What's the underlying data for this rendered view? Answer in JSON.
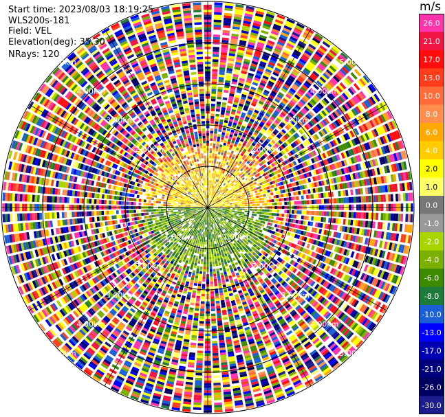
{
  "header": {
    "start_time": "Start time: 2023/08/03 18:19:25",
    "instrument": "WLS200s-181",
    "field": "Field: VEL",
    "elevation": "Elevation(deg): 35.30",
    "nrays": "NRays: 120"
  },
  "colorbar": {
    "unit": "m/s",
    "labels": [
      "26.0",
      "21.0",
      "17.0",
      "13.0",
      "10.0",
      "8.0",
      "6.0",
      "4.0",
      "2.0",
      "1.0",
      "0.0",
      "-1.0",
      "-2.0",
      "-4.0",
      "-6.0",
      "-8.0",
      "-10.0",
      "-13.0",
      "-17.0",
      "-21.0",
      "-26.0",
      "-30.0"
    ],
    "colors": [
      "#ff33aa",
      "#f01442",
      "#ff0d0d",
      "#ff3d1a",
      "#ff6c3a",
      "#ff8f4e",
      "#ffaa00",
      "#ffcc00",
      "#ffff00",
      "#ffff66",
      "#777777",
      "#999999",
      "#a8d400",
      "#7bb000",
      "#3d8c00",
      "#1e7a3a",
      "#1a5fd6",
      "#0000ff",
      "#0000b0",
      "#00007a",
      "#000060",
      "#1c1c8c"
    ]
  },
  "chart_data": {
    "type": "heatmap",
    "plot": "PPI (plan position indicator) radial velocity scan",
    "field": "VEL",
    "unit": "m/s",
    "nrays": 120,
    "range_rings_km": [
      1.0,
      2.0,
      3.0,
      4.0,
      5.0
    ],
    "max_range_km": 5.0,
    "ring_labels": [
      "1.00km",
      "2.00km",
      "3.00km",
      "4.00km",
      "5.00km"
    ],
    "spoke_angles_deg": [
      0,
      30,
      60,
      90,
      120,
      150
    ],
    "description": "Near-range gates: northern half mostly positive (yellow/orange, ~2-8 m/s), southern half mostly negative (green, ~-2 to -8 m/s); beyond ~1.6 km gates are noise spanning the full color scale."
  }
}
